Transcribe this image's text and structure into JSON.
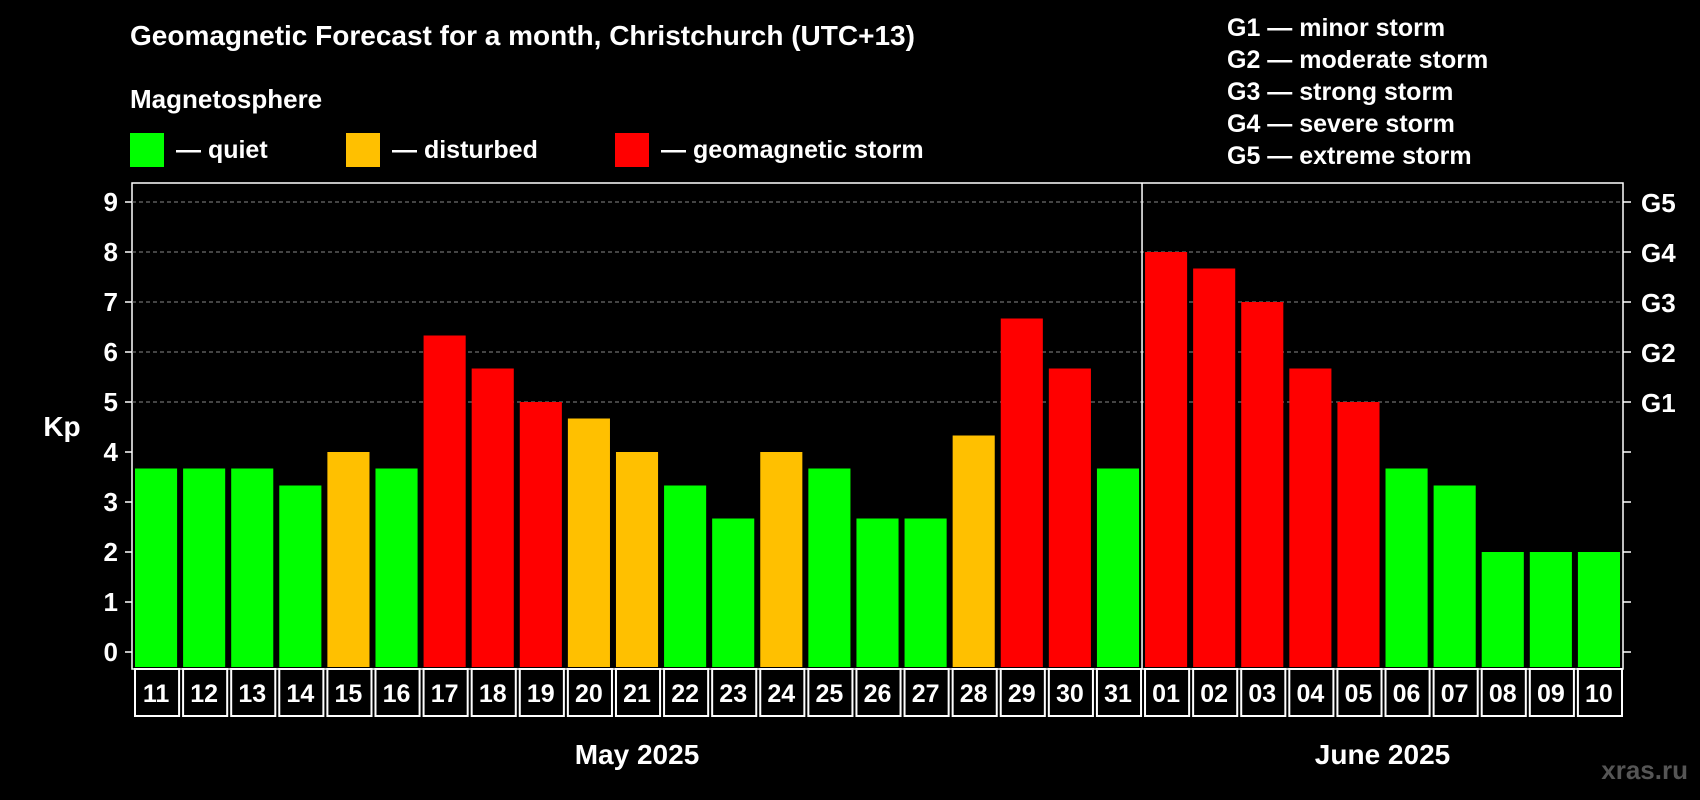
{
  "chart_data": {
    "type": "bar",
    "title": "Geomagnetic Forecast for a month, Christchurch (UTC+13)",
    "subtitle": "Magnetosphere",
    "ylabel": "Kp",
    "ylim": [
      0,
      9
    ],
    "y_ticks": [
      "0",
      "1",
      "2",
      "3",
      "4",
      "5",
      "6",
      "7",
      "8",
      "9"
    ],
    "right_axis_labels": [
      {
        "kp": 5,
        "label": "G1"
      },
      {
        "kp": 6,
        "label": "G2"
      },
      {
        "kp": 7,
        "label": "G3"
      },
      {
        "kp": 8,
        "label": "G4"
      },
      {
        "kp": 9,
        "label": "G5"
      }
    ],
    "categories": [
      "11",
      "12",
      "13",
      "14",
      "15",
      "16",
      "17",
      "18",
      "19",
      "20",
      "21",
      "22",
      "23",
      "24",
      "25",
      "26",
      "27",
      "28",
      "29",
      "30",
      "31",
      "01",
      "02",
      "03",
      "04",
      "05",
      "06",
      "07",
      "08",
      "09",
      "10"
    ],
    "values": [
      3.67,
      3.67,
      3.67,
      3.33,
      4.0,
      3.67,
      6.33,
      5.67,
      5.0,
      4.67,
      4.0,
      3.33,
      2.67,
      4.0,
      3.67,
      2.67,
      2.67,
      4.33,
      6.67,
      5.67,
      3.67,
      8.0,
      7.67,
      7.0,
      5.67,
      5.0,
      3.67,
      3.33,
      2.0,
      2.0,
      2.0
    ],
    "status": [
      "quiet",
      "quiet",
      "quiet",
      "quiet",
      "disturbed",
      "quiet",
      "storm",
      "storm",
      "storm",
      "disturbed",
      "disturbed",
      "quiet",
      "quiet",
      "disturbed",
      "quiet",
      "quiet",
      "quiet",
      "disturbed",
      "storm",
      "storm",
      "quiet",
      "storm",
      "storm",
      "storm",
      "storm",
      "storm",
      "quiet",
      "quiet",
      "quiet",
      "quiet",
      "quiet"
    ],
    "month_groups": [
      {
        "label": "May 2025",
        "count": 21
      },
      {
        "label": "June 2025",
        "count": 10
      }
    ],
    "grid": "dashed at Kp 5-9",
    "legend": [
      {
        "key": "quiet",
        "label": "— quiet",
        "color": "#00ff00"
      },
      {
        "key": "disturbed",
        "label": "— disturbed",
        "color": "#ffc000"
      },
      {
        "key": "storm",
        "label": "— geomagnetic storm",
        "color": "#ff0000"
      }
    ],
    "storm_scale": [
      "G1 — minor storm",
      "G2 — moderate storm",
      "G3 — strong storm",
      "G4 — severe storm",
      "G5 — extreme storm"
    ]
  },
  "watermark": "xras.ru"
}
